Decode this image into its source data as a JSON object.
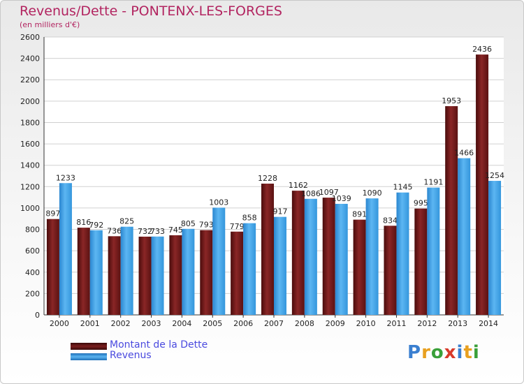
{
  "chart_data": {
    "type": "bar",
    "title": "Revenus/Dette - PONTENX-LES-FORGES",
    "subtitle": "(en milliers d'€)",
    "categories": [
      "2000",
      "2001",
      "2002",
      "2003",
      "2004",
      "2005",
      "2006",
      "2007",
      "2008",
      "2009",
      "2010",
      "2011",
      "2012",
      "2013",
      "2014"
    ],
    "series": [
      {
        "name": "Montant de la Dette",
        "color": "#7a1e1e",
        "values": [
          897,
          816,
          736,
          732,
          745,
          793,
          779,
          1228,
          1162,
          1097,
          891,
          834,
          995,
          1953,
          2436
        ]
      },
      {
        "name": "Revenus",
        "color": "#3d9be0",
        "values": [
          1233,
          792,
          825,
          733,
          805,
          1003,
          858,
          917,
          1086,
          1039,
          1090,
          1145,
          1191,
          1466,
          1254
        ]
      }
    ],
    "ylim": [
      0,
      2600
    ],
    "yticks": [
      0,
      200,
      400,
      600,
      800,
      1000,
      1200,
      1400,
      1600,
      1800,
      2000,
      2200,
      2400,
      2600
    ],
    "grid": true,
    "legend": "bottom-left"
  },
  "brand": {
    "logo_letters": [
      {
        "ch": "P",
        "color": "#3a7fd0"
      },
      {
        "ch": "r",
        "color": "#e8a020"
      },
      {
        "ch": "o",
        "color": "#3aa03a"
      },
      {
        "ch": "x",
        "color": "#d83a2a"
      },
      {
        "ch": "i",
        "color": "#3a7fd0"
      },
      {
        "ch": "t",
        "color": "#e8a020"
      },
      {
        "ch": "i",
        "color": "#3aa03a"
      }
    ]
  }
}
